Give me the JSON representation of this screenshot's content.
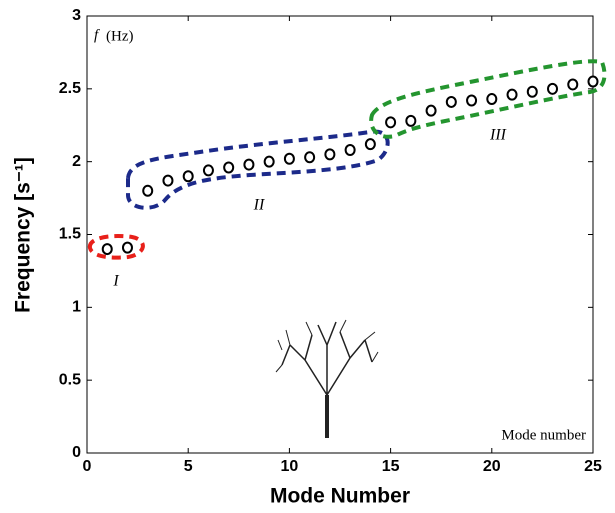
{
  "chart_data": {
    "type": "scatter",
    "xlabel": "Mode Number",
    "ylabel": "Frequency [s⁻¹]",
    "annotations": [
      "f",
      "(Hz)",
      "Mode number",
      "I",
      "II",
      "III"
    ],
    "x": [
      1,
      2,
      3,
      4,
      5,
      6,
      7,
      8,
      9,
      10,
      11,
      12,
      13,
      14,
      15,
      16,
      17,
      18,
      19,
      20,
      21,
      22,
      23,
      24,
      25
    ],
    "series": [
      {
        "color": "#000000",
        "values": [
          1.4,
          1.41,
          1.8,
          1.87,
          1.9,
          1.94,
          1.96,
          1.98,
          2.0,
          2.02,
          2.03,
          2.05,
          2.08,
          2.12,
          2.27,
          2.28,
          2.35,
          2.41,
          2.42,
          2.43,
          2.46,
          2.48,
          2.5,
          2.53,
          2.55
        ]
      }
    ],
    "xlim": [
      0,
      25
    ],
    "xticks": [
      0,
      5,
      10,
      15,
      20,
      25
    ],
    "ylim": [
      0,
      3
    ],
    "yticks": [
      0,
      0.5,
      1,
      1.5,
      2,
      2.5,
      3
    ]
  }
}
